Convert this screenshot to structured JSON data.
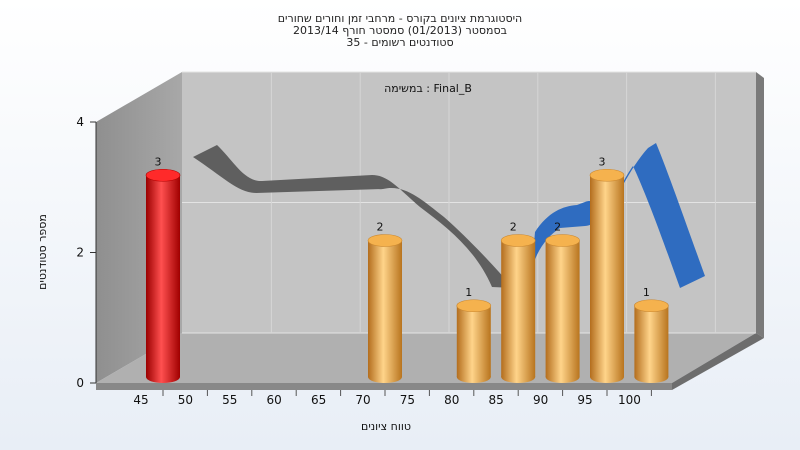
{
  "chart_data": {
    "type": "bar",
    "title_lines": [
      "היסטוגרמת ציונים בקורס - מרחבי זמן וחורים שחורים",
      "בסמסטר  (01/2013)  סמסטר חורף 2013/14",
      "35 - סטודנטים רשומים"
    ],
    "task_label": "במשימה : Final_B",
    "xlabel": "טווח ציונים",
    "ylabel": "מספר סטודנטים",
    "x_ticks": [
      45,
      50,
      55,
      60,
      65,
      70,
      75,
      80,
      85,
      90,
      95,
      100
    ],
    "y_ticks": [
      0,
      2,
      4
    ],
    "ylim": [
      0,
      4
    ],
    "grid": true,
    "bars": [
      {
        "x": 45,
        "value": 3,
        "color": "#e00000"
      },
      {
        "x": 70,
        "value": 2,
        "color": "#e8a040"
      },
      {
        "x": 80,
        "value": 1,
        "color": "#e8a040"
      },
      {
        "x": 85,
        "value": 2,
        "color": "#e8a040"
      },
      {
        "x": 90,
        "value": 2,
        "color": "#e8a040"
      },
      {
        "x": 95,
        "value": 3,
        "color": "#e8a040"
      },
      {
        "x": 100,
        "value": 1,
        "color": "#e8a040"
      }
    ],
    "curve_colors": {
      "gray": "#5f5f5f",
      "blue": "#2f6cc0"
    }
  }
}
